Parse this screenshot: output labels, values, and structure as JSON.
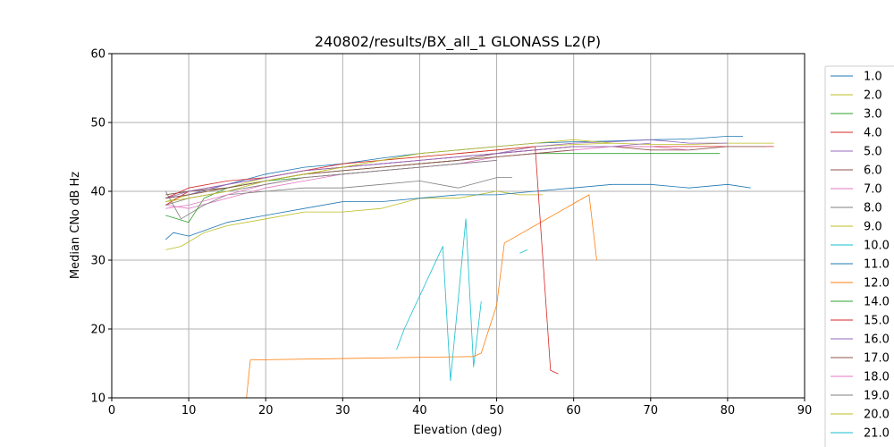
{
  "chart_data": {
    "type": "line",
    "title": "240802/results/BX_all_1 GLONASS L2(P)",
    "xlabel": "Elevation (deg)",
    "ylabel": "Median CNo dB Hz",
    "xlim": [
      0,
      90
    ],
    "ylim": [
      10,
      60
    ],
    "xticks": [
      "0",
      "10",
      "20",
      "30",
      "40",
      "50",
      "60",
      "70",
      "80",
      "90"
    ],
    "yticks": [
      "10",
      "20",
      "30",
      "40",
      "50",
      "60"
    ],
    "grid": true,
    "legend_position": "right, outside plot (clipped at bottom)",
    "series": [
      {
        "name": "1.0",
        "color": "#1f77b4",
        "x": [
          7,
          10,
          15,
          20,
          25,
          30,
          35,
          40,
          45,
          50,
          55,
          60,
          65,
          70,
          75,
          80,
          82
        ],
        "y": [
          39.0,
          39.5,
          41.0,
          42.5,
          43.5,
          44.0,
          44.8,
          45.5,
          46.0,
          46.5,
          47.0,
          47.2,
          47.3,
          47.5,
          47.6,
          48.0,
          48.0
        ]
      },
      {
        "name": "2.0",
        "color": "#bcbd22",
        "x": [
          7,
          10,
          15,
          20,
          25,
          30,
          35,
          40,
          45,
          50,
          55,
          60,
          65,
          70,
          75,
          80,
          86
        ],
        "y": [
          38.5,
          39.5,
          40.5,
          42.0,
          43.0,
          43.5,
          44.5,
          45.0,
          45.5,
          46.0,
          46.5,
          46.8,
          47.0,
          46.8,
          46.8,
          47.0,
          47.0
        ]
      },
      {
        "name": "3.0",
        "color": "#2ca02c",
        "x": [
          7,
          10,
          15,
          20,
          25,
          30,
          35,
          40,
          45,
          50,
          55,
          60,
          65,
          70,
          75,
          79
        ],
        "y": [
          39.5,
          40.0,
          40.5,
          41.5,
          42.5,
          43.0,
          43.5,
          44.0,
          44.5,
          45.0,
          45.5,
          45.5,
          45.5,
          45.5,
          45.5,
          45.5
        ]
      },
      {
        "name": "4.0",
        "color": "#d62728",
        "x": [
          7,
          10,
          15,
          20,
          25,
          30,
          35,
          40,
          45,
          50,
          55,
          60,
          65,
          70,
          75,
          80,
          86
        ],
        "y": [
          38.0,
          40.0,
          41.0,
          42.0,
          43.0,
          43.5,
          44.0,
          44.5,
          45.0,
          45.5,
          46.0,
          46.5,
          46.5,
          46.5,
          46.5,
          46.5,
          46.5
        ]
      },
      {
        "name": "5.0",
        "color": "#9467bd",
        "x": [
          7,
          10,
          15,
          20,
          25,
          30,
          35,
          40,
          45,
          50,
          55,
          60,
          65,
          70,
          75,
          80
        ],
        "y": [
          39.0,
          39.5,
          41.0,
          42.0,
          43.0,
          43.5,
          44.0,
          44.5,
          45.0,
          45.5,
          46.5,
          47.0,
          47.2,
          47.5,
          47.0,
          47.0
        ]
      },
      {
        "name": "6.0",
        "color": "#8c564b",
        "x": [
          7,
          10,
          15,
          20,
          25,
          30,
          35,
          40,
          45,
          50,
          55,
          60,
          65,
          70,
          75,
          80,
          85
        ],
        "y": [
          39.5,
          40.0,
          40.5,
          41.5,
          42.5,
          43.0,
          43.5,
          44.0,
          44.5,
          45.5,
          46.0,
          46.5,
          46.5,
          46.0,
          46.0,
          46.5,
          46.5
        ]
      },
      {
        "name": "7.0",
        "color": "#e377c2",
        "x": [
          7,
          10,
          15,
          20,
          25,
          30,
          35,
          40,
          45,
          50,
          55,
          60,
          65,
          70,
          75
        ],
        "y": [
          38.0,
          37.5,
          39.0,
          40.5,
          41.5,
          42.5,
          43.0,
          43.5,
          44.0,
          45.0,
          45.5,
          46.0,
          46.5,
          46.5,
          46.0
        ]
      },
      {
        "name": "8.0",
        "color": "#7f7f7f",
        "x": [
          7,
          9,
          12,
          15,
          20,
          25,
          30,
          35,
          40,
          45,
          50,
          52
        ],
        "y": [
          40.0,
          36.0,
          38.0,
          39.5,
          40.0,
          40.5,
          40.5,
          41.0,
          41.5,
          40.5,
          42.0,
          42.0
        ]
      },
      {
        "name": "9.0",
        "color": "#bcbd22",
        "x": [
          7,
          9,
          12,
          15,
          20,
          25,
          30,
          35,
          40,
          45,
          50,
          53,
          56
        ],
        "y": [
          31.5,
          32.0,
          34.0,
          35.0,
          36.0,
          37.0,
          37.0,
          37.5,
          39.0,
          39.0,
          40.0,
          39.5,
          39.5
        ]
      },
      {
        "name": "10.0",
        "color": "#17becf",
        "x": [
          37,
          38,
          43,
          44,
          46,
          47,
          48
        ],
        "y": [
          17.0,
          20.0,
          32.0,
          12.5,
          36.0,
          14.5,
          24.0
        ]
      },
      {
        "name": "11.0",
        "color": "#1f77b4",
        "x": [
          7,
          8,
          10,
          15,
          20,
          25,
          30,
          35,
          40,
          45,
          50,
          55,
          60,
          65,
          70,
          75,
          80,
          83
        ],
        "y": [
          33.0,
          34.0,
          33.5,
          35.5,
          36.5,
          37.5,
          38.5,
          38.5,
          39.0,
          39.5,
          39.5,
          40.0,
          40.5,
          41.0,
          41.0,
          40.5,
          41.0,
          40.5
        ]
      },
      {
        "name": "12.0",
        "color": "#ff7f0e",
        "x": [
          17.5,
          18,
          47,
          48,
          50,
          51,
          62,
          63
        ],
        "y": [
          10.0,
          15.5,
          16.0,
          16.5,
          23.5,
          32.5,
          39.5,
          30.0
        ]
      },
      {
        "name": "14.0",
        "color": "#2ca02c",
        "x": [
          7,
          10,
          12,
          15,
          20,
          25,
          30,
          35,
          40,
          45
        ],
        "y": [
          36.5,
          35.5,
          39.0,
          40.5,
          41.5,
          42.0,
          42.5,
          43.0,
          43.5,
          44.0
        ]
      },
      {
        "name": "15.0",
        "color": "#d62728",
        "x": [
          7,
          10,
          15,
          20,
          25,
          30,
          35,
          40,
          45,
          50,
          55,
          57,
          58
        ],
        "y": [
          39.0,
          40.5,
          41.5,
          42.0,
          43.0,
          44.0,
          44.5,
          45.0,
          45.5,
          46.0,
          46.5,
          14.0,
          13.5
        ]
      },
      {
        "name": "16.0",
        "color": "#9467bd",
        "x": [
          7,
          10,
          15,
          20,
          25,
          30,
          35,
          40,
          45,
          50,
          55,
          60,
          65,
          70
        ],
        "y": [
          39.0,
          40.0,
          41.0,
          42.0,
          43.0,
          43.5,
          44.0,
          44.5,
          45.0,
          45.5,
          46.0,
          46.5,
          46.5,
          47.0
        ]
      },
      {
        "name": "17.0",
        "color": "#8c564b",
        "x": [
          7,
          10,
          15,
          20,
          25,
          30,
          35,
          40,
          45,
          50,
          55,
          60
        ],
        "y": [
          39.0,
          39.5,
          40.5,
          41.5,
          42.5,
          43.0,
          43.5,
          44.0,
          44.5,
          45.0,
          45.5,
          46.0
        ]
      },
      {
        "name": "18.0",
        "color": "#e377c2",
        "x": [
          7,
          10,
          15,
          20,
          25,
          30,
          35,
          40,
          45,
          50
        ],
        "y": [
          37.5,
          38.0,
          39.5,
          41.0,
          42.0,
          42.5,
          43.0,
          43.5,
          44.0,
          44.5
        ]
      },
      {
        "name": "19.0",
        "color": "#7f7f7f",
        "x": [
          7,
          10,
          15,
          20,
          25,
          30,
          35,
          40,
          45,
          50
        ],
        "y": [
          38.0,
          39.0,
          40.0,
          41.0,
          42.0,
          42.5,
          43.0,
          43.5,
          44.0,
          44.5
        ]
      },
      {
        "name": "20.0",
        "color": "#bcbd22",
        "x": [
          7,
          10,
          15,
          20,
          25,
          30,
          35,
          40,
          45,
          50,
          55,
          60,
          65
        ],
        "y": [
          38.5,
          39.0,
          40.0,
          41.5,
          42.5,
          43.5,
          44.5,
          45.5,
          46.0,
          46.5,
          47.0,
          47.5,
          47.0
        ]
      },
      {
        "name": "21.0",
        "color": "#17becf",
        "x": [
          53,
          54
        ],
        "y": [
          31.0,
          31.5
        ]
      }
    ]
  }
}
